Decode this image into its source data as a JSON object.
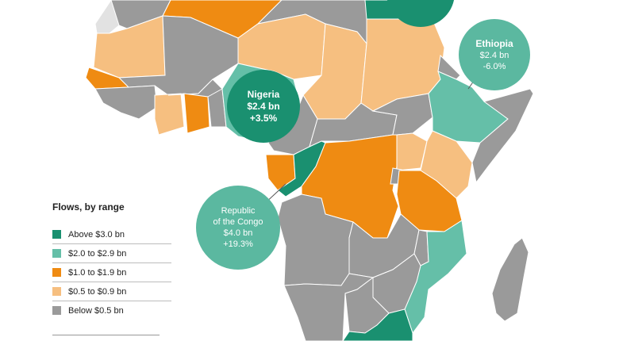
{
  "colors": {
    "above_3": "#1a9070",
    "r2_29": "#65bfa8",
    "r1_19": "#ef8b12",
    "r05_09": "#f6bf80",
    "below_05": "#9a9a9a",
    "unknown": "#e2e2e2",
    "ocean": "#ffffff"
  },
  "legend": {
    "title": "Flows, by range",
    "items": [
      {
        "label": "Above $3.0 bn",
        "color": "#1a9070"
      },
      {
        "label": "$2.0 to $2.9 bn",
        "color": "#65bfa8"
      },
      {
        "label": "$1.0 to $1.9 bn",
        "color": "#ef8b12"
      },
      {
        "label": "$0.5 to $0.9 bn",
        "color": "#f6bf80"
      },
      {
        "label": "Below $0.5 bn",
        "color": "#9a9a9a"
      }
    ]
  },
  "callouts": {
    "ethiopia": {
      "name": "Ethiopia",
      "value": "$2.4 bn",
      "change": "-6.0%"
    },
    "nigeria": {
      "name": "Nigeria",
      "value": "$2.4 bn",
      "change": "+3.5%"
    },
    "congo": {
      "name_line1": "Republic",
      "name_line2": "of the Congo",
      "value": "$4.0 bn",
      "change": "+19.3%"
    }
  }
}
